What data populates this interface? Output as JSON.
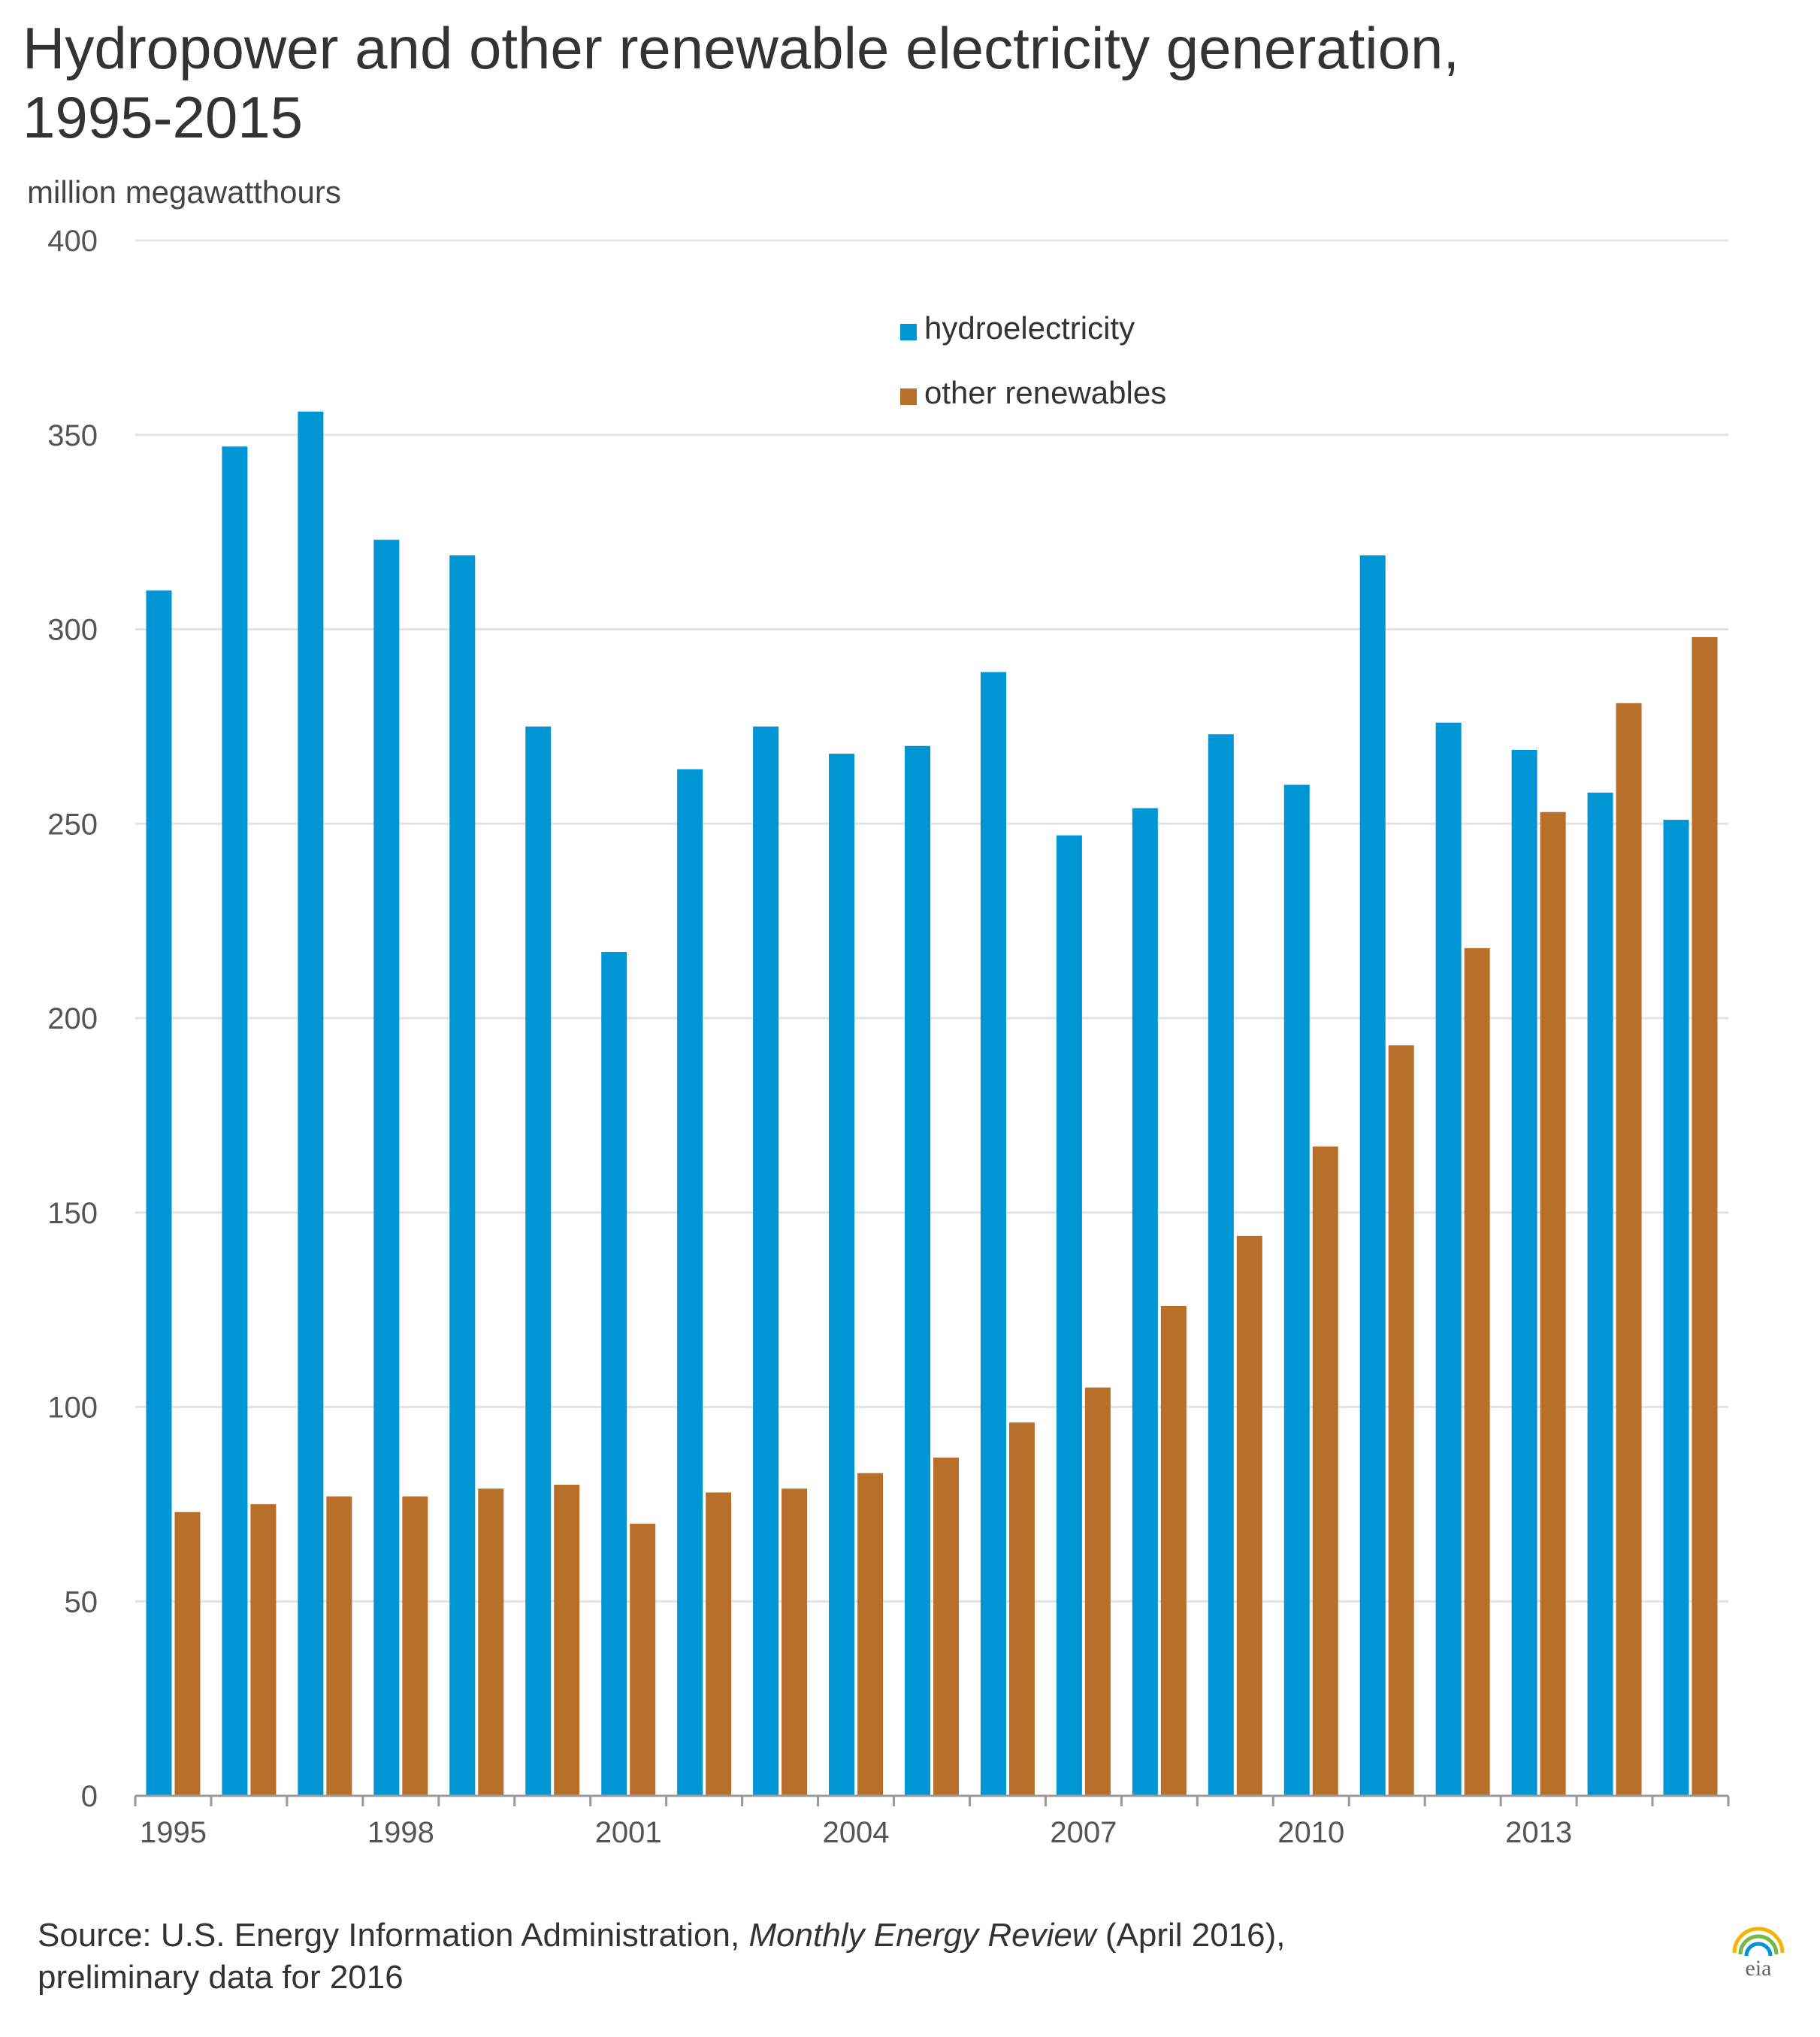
{
  "chart_data": {
    "type": "bar",
    "title_line1": "Hydropower and other renewable electricity generation,",
    "title_line2": "1995-2015",
    "units_label": "million megawatthours",
    "ylim": [
      0,
      400
    ],
    "yticks": [
      "0",
      "50",
      "100",
      "150",
      "200",
      "250",
      "300",
      "350",
      "400"
    ],
    "x_tick_labels": [
      {
        "year": 1995,
        "label": "1995"
      },
      {
        "year": 1998,
        "label": "1998"
      },
      {
        "year": 2001,
        "label": "2001"
      },
      {
        "year": 2004,
        "label": "2004"
      },
      {
        "year": 2007,
        "label": "2007"
      },
      {
        "year": 2010,
        "label": "2010"
      },
      {
        "year": 2013,
        "label": "2013"
      }
    ],
    "categories": [
      1995,
      1996,
      1997,
      1998,
      1999,
      2000,
      2001,
      2002,
      2003,
      2004,
      2005,
      2006,
      2007,
      2008,
      2009,
      2010,
      2011,
      2012,
      2013,
      2014,
      2015
    ],
    "series": [
      {
        "name": "hydroelectricity",
        "color": "#0096d6",
        "values": [
          310,
          347,
          356,
          323,
          319,
          275,
          217,
          264,
          275,
          268,
          270,
          289,
          247,
          254,
          273,
          260,
          319,
          276,
          269,
          258,
          251
        ]
      },
      {
        "name": "other renewables",
        "color": "#b86f2a",
        "values": [
          73,
          75,
          77,
          77,
          79,
          80,
          70,
          78,
          79,
          83,
          87,
          96,
          105,
          126,
          144,
          167,
          193,
          218,
          253,
          281,
          298
        ]
      }
    ],
    "legend_position": "top-center"
  },
  "source": {
    "prefix": "Source: U.S. Energy Information Administration, ",
    "publication": "Monthly Energy Review",
    "suffix": " (April 2016),",
    "line2": "preliminary data for 2016"
  },
  "logo": {
    "text": "eia"
  },
  "colors": {
    "grid": "#e3e3e3",
    "axis": "#999999",
    "tick_text": "#555555"
  }
}
